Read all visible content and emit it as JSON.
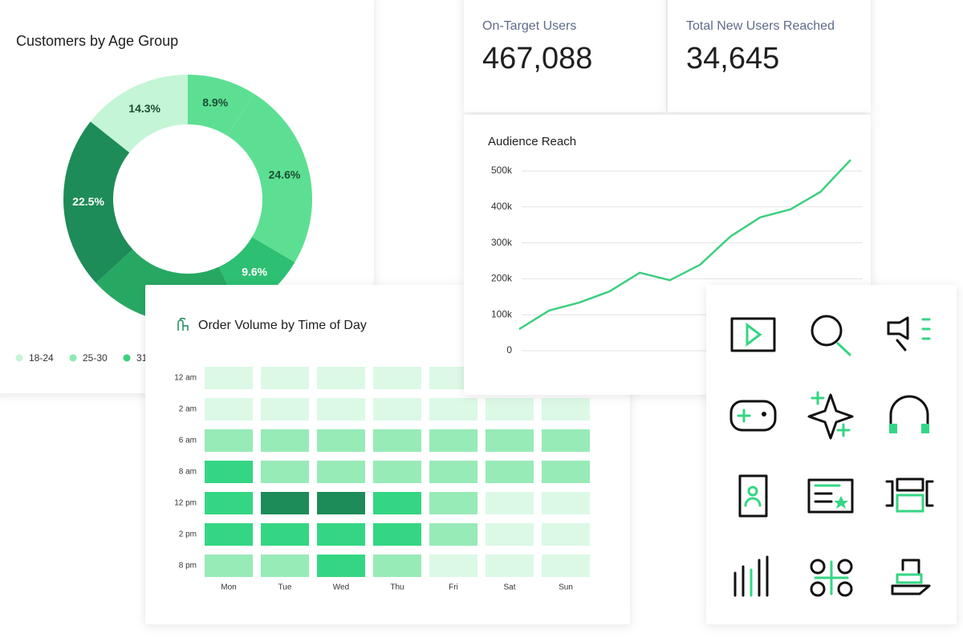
{
  "chart_data": [
    {
      "type": "donut",
      "title": "Customers by Age Group",
      "categories": [
        "18-24",
        "25-30",
        "31",
        null,
        null,
        null
      ],
      "legend_colors": [
        "#c4f5d6",
        "#8ee8b1",
        "#3ccf7f"
      ],
      "values": [
        8.9,
        24.6,
        9.6,
        20.1,
        22.5,
        14.3
      ],
      "value_labels": [
        "8.9%",
        "24.6%",
        "9.6%",
        null,
        "22.5%",
        "14.3%"
      ],
      "colors": [
        "#5ddf93",
        "#5ddf93",
        "#2dbf72",
        "#27a862",
        "#1e8c58",
        "#c4f5d6"
      ]
    },
    {
      "type": "heatmap",
      "title": "Order Volume by Time of Day",
      "x": [
        "Mon",
        "Tue",
        "Wed",
        "Thu",
        "Fri",
        "Sat",
        "Sun"
      ],
      "y": [
        "12 am",
        "2 am",
        "6 am",
        "8 am",
        "12 pm",
        "2 pm",
        "8 pm"
      ],
      "values": [
        [
          1,
          1,
          1,
          1,
          1,
          1,
          1
        ],
        [
          1,
          1,
          1,
          1,
          1,
          1,
          1
        ],
        [
          2,
          2,
          2,
          2,
          2,
          2,
          2
        ],
        [
          3,
          2,
          2,
          2,
          2,
          2,
          2
        ],
        [
          3,
          4,
          4,
          3,
          2,
          1,
          1
        ],
        [
          3,
          3,
          3,
          3,
          2,
          1,
          1
        ],
        [
          2,
          2,
          3,
          2,
          1,
          1,
          1
        ]
      ],
      "colors": [
        "#dcf9e6",
        "#97ebb7",
        "#34d683",
        "#1e8c58"
      ]
    },
    {
      "type": "line",
      "title": "Audience Reach",
      "categories": [
        null,
        null,
        null,
        null,
        null,
        null,
        null,
        null,
        null,
        null,
        null,
        null
      ],
      "values": [
        60000,
        112000,
        134000,
        165000,
        217000,
        196000,
        239000,
        317000,
        371000,
        393000,
        442000,
        531000
      ],
      "color": "#3ccf7f",
      "ylim": [
        -50000,
        550000
      ],
      "yticks": [
        0,
        {
          "value": 100000,
          "label": "100k"
        },
        {
          "value": 200000,
          "label": "200k"
        },
        {
          "value": 300000,
          "label": "300k"
        },
        {
          "value": 400000,
          "label": "400k"
        },
        {
          "value": 500000,
          "label": "500k"
        }
      ],
      "grid": true
    }
  ],
  "kpis": [
    {
      "label": "On-Target Users",
      "value": "467,088"
    },
    {
      "label": "Total New Users Reached",
      "value": "34,645"
    }
  ]
}
